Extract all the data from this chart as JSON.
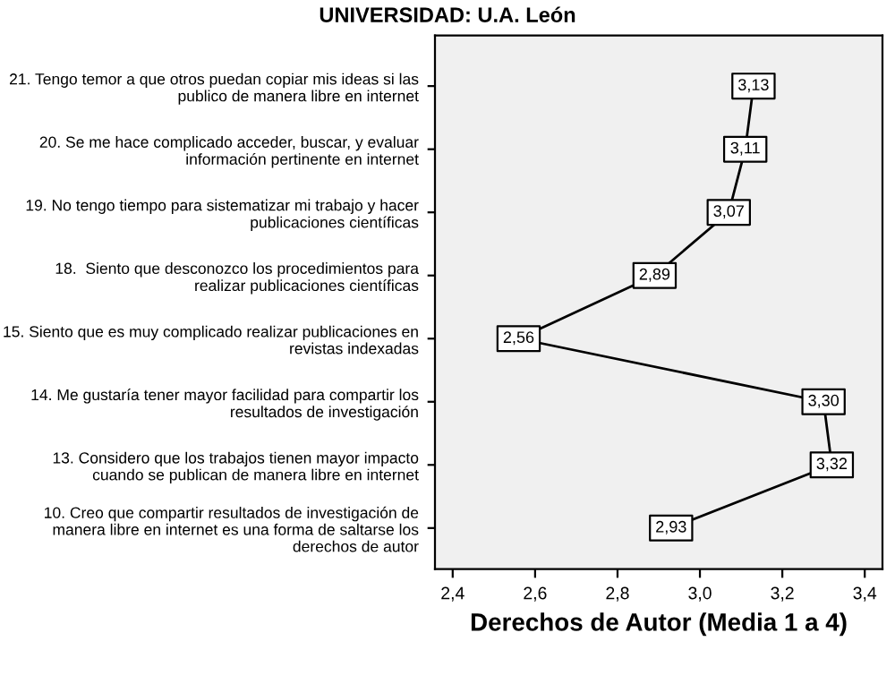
{
  "chart_data": {
    "type": "line",
    "orientation": "horizontal",
    "title": "UNIVERSIDAD: U.A. León",
    "xlabel": "Derechos de Autor (Media 1 a 4)",
    "categories": [
      "21. Tengo temor a que otros puedan copiar mis ideas si las\npublico de manera libre en internet",
      "20. Se me hace complicado acceder, buscar, y evaluar\ninformación pertinente en internet",
      "19. No tengo tiempo para sistematizar mi trabajo y hacer\npublicaciones científicas",
      "18.  Siento que desconozco los procedimientos para\nrealizar publicaciones científicas",
      "15. Siento que es muy complicado realizar publicaciones en\nrevistas indexadas",
      "14. Me gustaría tener mayor facilidad para compartir los\nresultados de investigación",
      "13. Considero que los trabajos tienen mayor impacto\ncuando se publican de manera libre en internet",
      "10. Creo que compartir resultados de investigación de\nmanera libre en internet es una forma de saltarse los\nderechos de autor"
    ],
    "values": [
      3.13,
      3.11,
      3.07,
      2.89,
      2.56,
      3.3,
      3.32,
      2.93
    ],
    "value_labels": [
      "3,13",
      "3,11",
      "3,07",
      "2,89",
      "2,56",
      "3,30",
      "3,32",
      "2,93"
    ],
    "color": "#000000",
    "xlim": [
      2.357,
      3.443
    ],
    "xticks": [
      {
        "value": 2.4,
        "label": "2,4"
      },
      {
        "value": 2.6,
        "label": "2,6"
      },
      {
        "value": 2.8,
        "label": "2,8"
      },
      {
        "value": 3.0,
        "label": "3,0"
      },
      {
        "value": 3.2,
        "label": "3,2"
      },
      {
        "value": 3.4,
        "label": "3,4"
      }
    ],
    "marker": "square",
    "line_style": "solid",
    "grid": false,
    "legend": false
  }
}
